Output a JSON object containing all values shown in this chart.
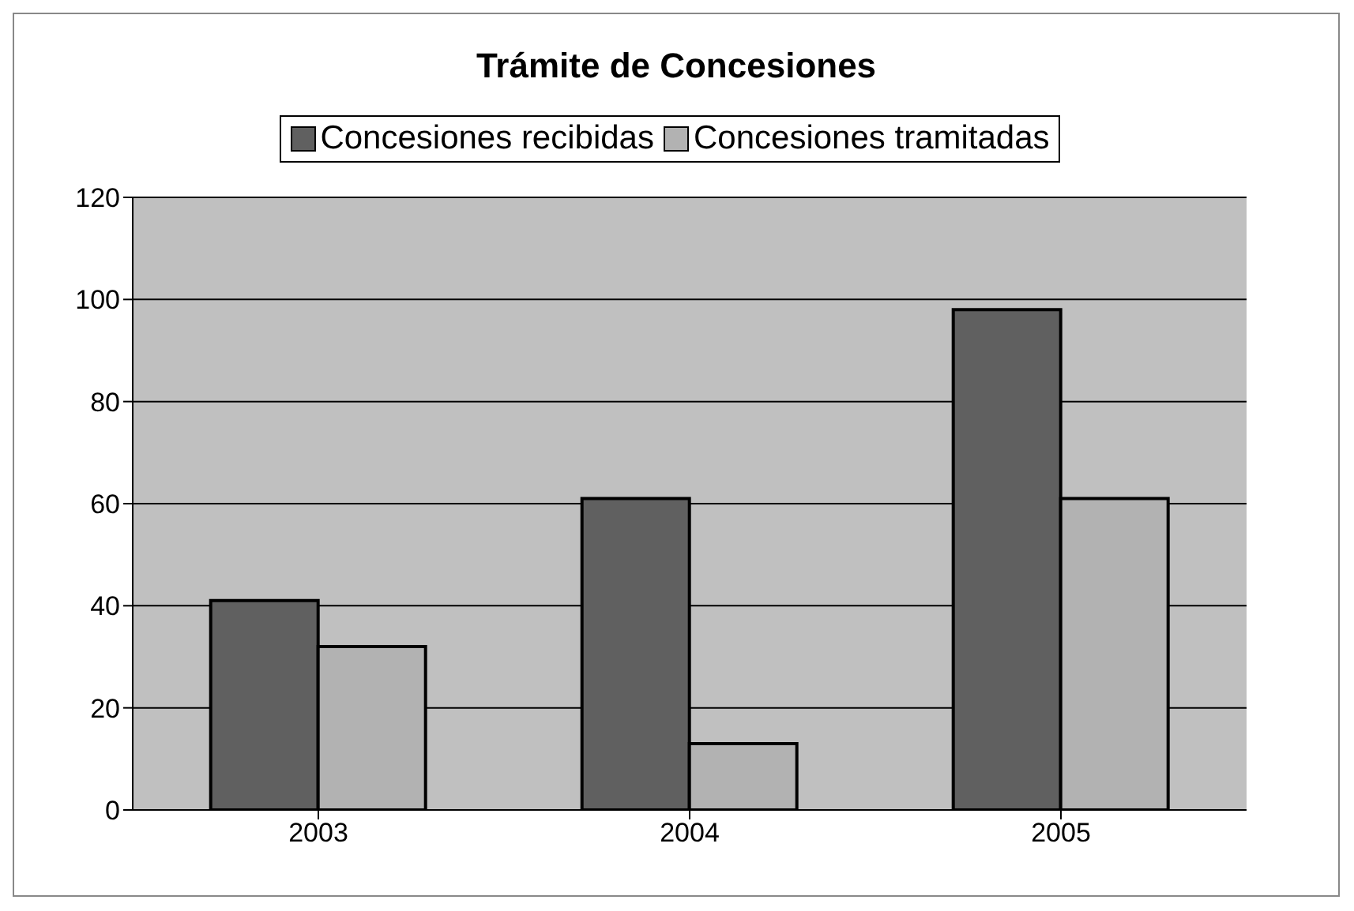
{
  "chart_data": {
    "type": "bar",
    "title": "Trámite de Concesiones",
    "categories": [
      "2003",
      "2004",
      "2005"
    ],
    "series": [
      {
        "name": "Concesiones recibidas",
        "color": "#606060",
        "values": [
          41,
          61,
          98
        ]
      },
      {
        "name": "Concesiones tramitadas",
        "color": "#b2b2b2",
        "values": [
          32,
          13,
          61
        ]
      }
    ],
    "ylim": [
      0,
      120
    ],
    "yticks": [
      0,
      20,
      40,
      60,
      80,
      100,
      120
    ],
    "grid": "y",
    "legend": "top"
  }
}
